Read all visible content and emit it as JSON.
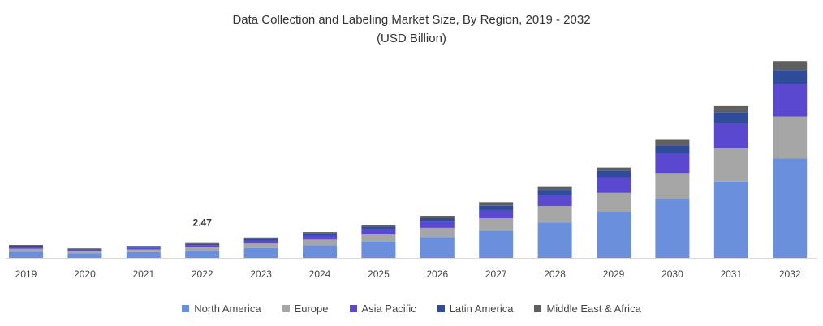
{
  "chart_data": {
    "type": "bar",
    "stacked": true,
    "title": "Data Collection and Labeling Market Size, By Region, 2019 - 2032",
    "subtitle": "(USD Billion)",
    "xlabel": "",
    "ylabel": "",
    "ylim": [
      0,
      33
    ],
    "grid": false,
    "legend_position": "bottom",
    "categories": [
      "2019",
      "2020",
      "2021",
      "2022",
      "2023",
      "2024",
      "2025",
      "2026",
      "2027",
      "2028",
      "2029",
      "2030",
      "2031",
      "2032"
    ],
    "series": [
      {
        "name": "North America",
        "color": "#6a8fdc",
        "values": [
          1.05,
          0.78,
          0.98,
          1.2,
          1.65,
          2.1,
          2.7,
          3.45,
          4.5,
          5.9,
          7.6,
          9.8,
          12.7,
          16.5
        ]
      },
      {
        "name": "Europe",
        "color": "#a6a6a6",
        "values": [
          0.47,
          0.35,
          0.44,
          0.55,
          0.75,
          0.95,
          1.2,
          1.55,
          2.1,
          2.7,
          3.2,
          4.3,
          5.5,
          7.0
        ]
      },
      {
        "name": "Asia Pacific",
        "color": "#5a48d0",
        "values": [
          0.32,
          0.24,
          0.3,
          0.37,
          0.5,
          0.65,
          0.85,
          1.05,
          1.35,
          1.8,
          2.6,
          3.2,
          4.1,
          5.4
        ]
      },
      {
        "name": "Latin America",
        "color": "#2e4c9a",
        "values": [
          0.18,
          0.13,
          0.16,
          0.2,
          0.3,
          0.35,
          0.45,
          0.55,
          0.7,
          0.9,
          1.1,
          1.4,
          1.9,
          2.3
        ]
      },
      {
        "name": "Middle East & Africa",
        "color": "#5f5f5f",
        "values": [
          0.13,
          0.1,
          0.12,
          0.15,
          0.2,
          0.25,
          0.3,
          0.4,
          0.6,
          0.6,
          0.5,
          0.9,
          1.0,
          1.5
        ]
      }
    ],
    "annotations": [
      {
        "category": "2022",
        "text": "2.47"
      }
    ]
  }
}
